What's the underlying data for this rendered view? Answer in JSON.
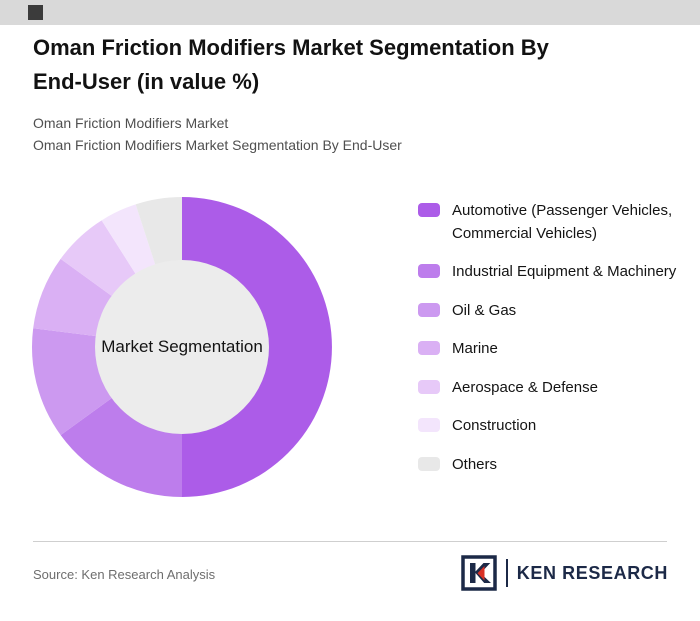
{
  "header": {
    "title_line1": "Oman Friction Modifiers Market Segmentation By",
    "title_line2": "End-User (in value %)",
    "subtitle_line1": "Oman Friction Modifiers Market",
    "subtitle_line2": "Oman Friction Modifiers Market Segmentation By End-User"
  },
  "footer": {
    "source": "Source: Ken Research Analysis",
    "logo_text": "KEN RESEARCH"
  },
  "chart_data": {
    "type": "pie",
    "donut": true,
    "title": "Oman Friction Modifiers Market Segmentation By End-User (in value %)",
    "center_label": "Market Segmentation",
    "legend_position": "right",
    "hole_color": "#ECECEC",
    "accent_red": "#D93025",
    "brand_navy": "#1C2947",
    "segments": [
      {
        "label": "Automotive (Passenger Vehicles, Commercial Vehicles)",
        "value": 50,
        "color": "#AC5CE8"
      },
      {
        "label": "Industrial Equipment & Machinery",
        "value": 15,
        "color": "#BD7DEC"
      },
      {
        "label": "Oil & Gas",
        "value": 12,
        "color": "#CC99F0"
      },
      {
        "label": "Marine",
        "value": 8,
        "color": "#DAB0F4"
      },
      {
        "label": "Aerospace & Defense",
        "value": 6,
        "color": "#E7C9F8"
      },
      {
        "label": "Construction",
        "value": 4,
        "color": "#F3E5FC"
      },
      {
        "label": "Others",
        "value": 5,
        "color": "#E8E8E8"
      }
    ]
  }
}
